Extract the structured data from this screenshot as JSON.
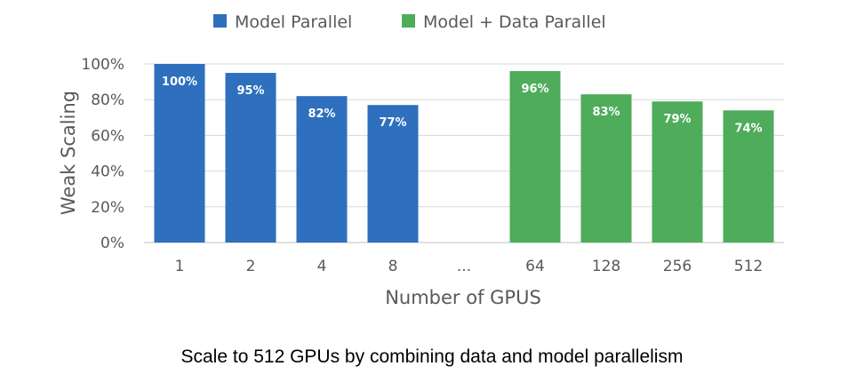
{
  "chart_data": {
    "type": "bar",
    "categories": [
      "1",
      "2",
      "4",
      "8",
      "...",
      "64",
      "128",
      "256",
      "512"
    ],
    "series": [
      {
        "name": "Model Parallel",
        "color": "#2e6fbe",
        "values": [
          100,
          95,
          82,
          77,
          null,
          null,
          null,
          null,
          null
        ],
        "labels": [
          "100%",
          "95%",
          "82%",
          "77%",
          "",
          "",
          "",
          "",
          ""
        ]
      },
      {
        "name": "Model + Data Parallel",
        "color": "#4eac5b",
        "values": [
          null,
          null,
          null,
          null,
          null,
          96,
          83,
          79,
          74
        ],
        "labels": [
          "",
          "",
          "",
          "",
          "",
          "96%",
          "83%",
          "79%",
          "74%"
        ]
      }
    ],
    "xlabel": "Number of GPUS",
    "ylabel": "Weak Scaling",
    "ylim": [
      0,
      100
    ],
    "yticks": [
      0,
      20,
      40,
      60,
      80,
      100
    ],
    "ytick_labels": [
      "0%",
      "20%",
      "40%",
      "60%",
      "80%",
      "100%"
    ],
    "grid": true,
    "legend_position": "top"
  },
  "caption": "Scale to 512 GPUs by combining data and model parallelism"
}
